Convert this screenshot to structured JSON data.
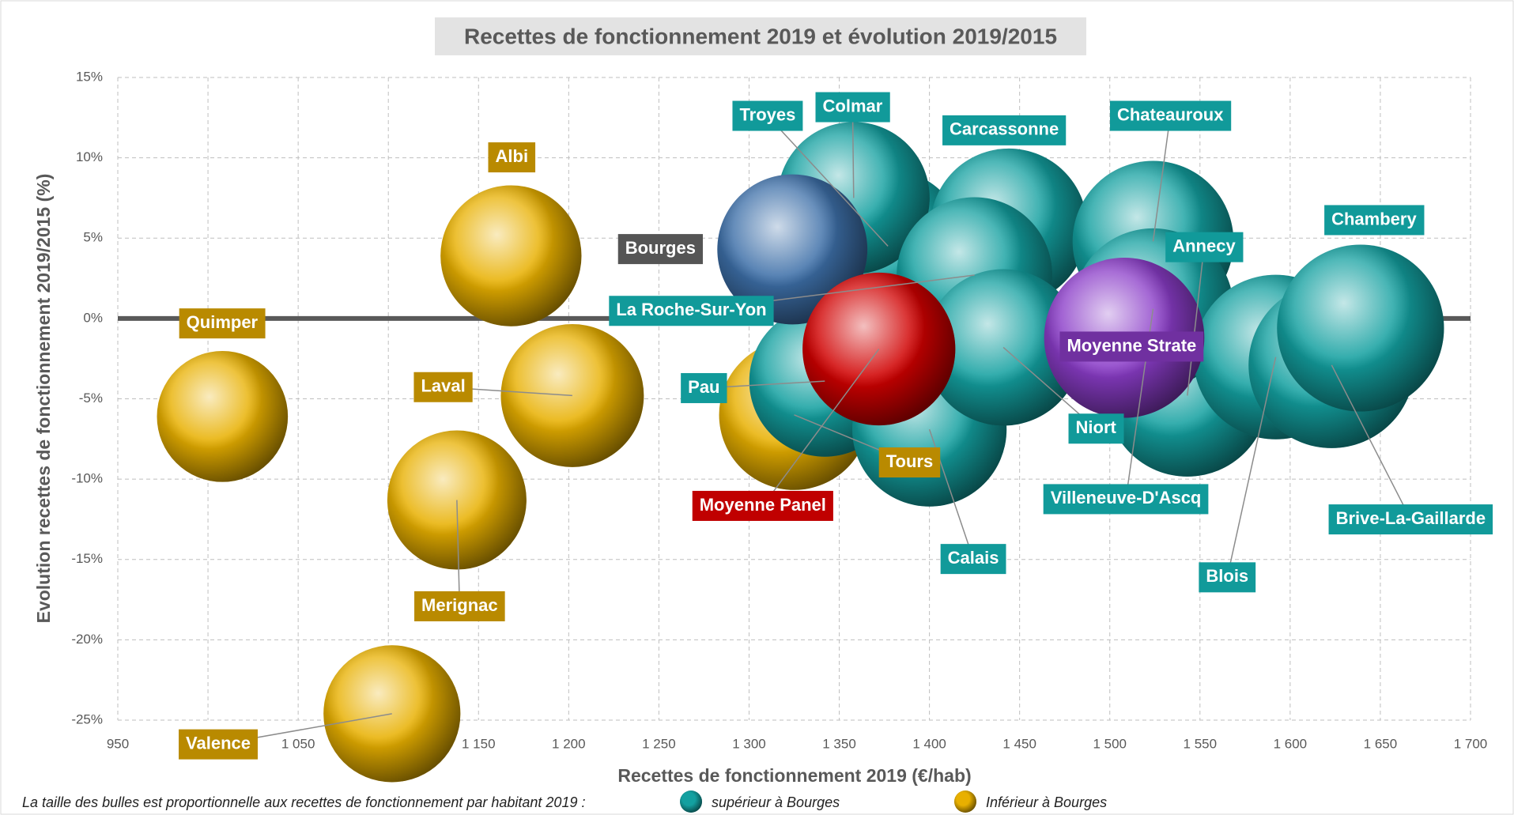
{
  "chart_data": {
    "type": "bubble",
    "title": "Recettes de fonctionnement 2019 et évolution 2019/2015",
    "x_label": "Recettes de fonctionnement 2019 (€/hab)",
    "y_label": "Evolution recettes de fonctionnement 2019/2015 (%)",
    "footnote": "La taille des bulles est proportionnelle aux recettes de fonctionnement par habitant 2019 :",
    "xlim": [
      950,
      1700
    ],
    "xticks": [
      950,
      {
        "value": 1000,
        "label": "1 000"
      },
      {
        "value": 1050,
        "label": "1 050"
      },
      {
        "value": 1100,
        "label": "1 100"
      },
      {
        "value": 1150,
        "label": "1 150"
      },
      {
        "value": 1200,
        "label": "1 200"
      },
      {
        "value": 1250,
        "label": "1 250"
      },
      {
        "value": 1300,
        "label": "1 300"
      },
      {
        "value": 1350,
        "label": "1 350"
      },
      {
        "value": 1400,
        "label": "1 400"
      },
      {
        "value": 1450,
        "label": "1 450"
      },
      {
        "value": 1500,
        "label": "1 500"
      },
      {
        "value": 1550,
        "label": "1 550"
      },
      {
        "value": 1600,
        "label": "1 600"
      },
      {
        "value": 1650,
        "label": "1 650"
      },
      {
        "value": 1700,
        "label": "1 700"
      }
    ],
    "ylim": [
      -25,
      15
    ],
    "yticks": [
      {
        "value": 15,
        "label": "15%"
      },
      {
        "value": 10,
        "label": "10%"
      },
      {
        "value": 5,
        "label": "5%"
      },
      {
        "value": 0,
        "label": "0%"
      },
      {
        "value": -5,
        "label": "-5%"
      },
      {
        "value": -10,
        "label": "-10%"
      },
      {
        "value": -15,
        "label": "-15%"
      },
      {
        "value": -20,
        "label": "-20%"
      },
      {
        "value": -25,
        "label": "-25%"
      }
    ],
    "grid": true,
    "series": [
      {
        "name": "Inférieur à Bourges",
        "color": "#e8b000",
        "label_color": "#b98a00",
        "labels": [
          "Quimper",
          "Albi",
          "Laval",
          "Merignac",
          "Valence",
          "Tours"
        ],
        "x": [
          1008,
          1168,
          1202,
          1138,
          1102,
          1325
        ],
        "values": [
          -6.1,
          3.9,
          -4.8,
          -11.3,
          -24.6,
          -6.0
        ]
      },
      {
        "name": "supérieur à Bourges",
        "color": "#13a0a0",
        "label_color": "#119a9a",
        "labels": [
          "Troyes",
          "Colmar",
          "Carcassonne",
          "La Roche-Sur-Yon",
          "Pau",
          "Calais",
          "Niort",
          "Chateauroux",
          "Annecy",
          "Villeneuve-D'Ascq",
          "Blois",
          "Brive-La-Gaillarde",
          "Chambery"
        ],
        "x": [
          1377,
          1358,
          1444,
          1425,
          1342,
          1400,
          1441,
          1524,
          1543,
          1524,
          1592,
          1623,
          1639
        ],
        "values": [
          4.5,
          7.5,
          5.7,
          2.7,
          -3.9,
          -6.9,
          -1.8,
          4.8,
          -4.8,
          0.6,
          -2.4,
          -2.9,
          -0.6
        ]
      },
      {
        "color": "#3d6fa8",
        "label_color": "#555555",
        "labels": [
          "Bourges"
        ],
        "x": [
          1324
        ],
        "values": [
          4.3
        ]
      },
      {
        "color": "#d00000",
        "label_color": "#c00000",
        "labels": [
          "Moyenne Panel"
        ],
        "x": [
          1372
        ],
        "values": [
          -1.9
        ]
      },
      {
        "color": "#8a3cc8",
        "label_color": "#7030a0",
        "labels": [
          "Moyenne Strate"
        ],
        "x": [
          1508
        ],
        "values": [
          -1.2
        ]
      }
    ]
  }
}
